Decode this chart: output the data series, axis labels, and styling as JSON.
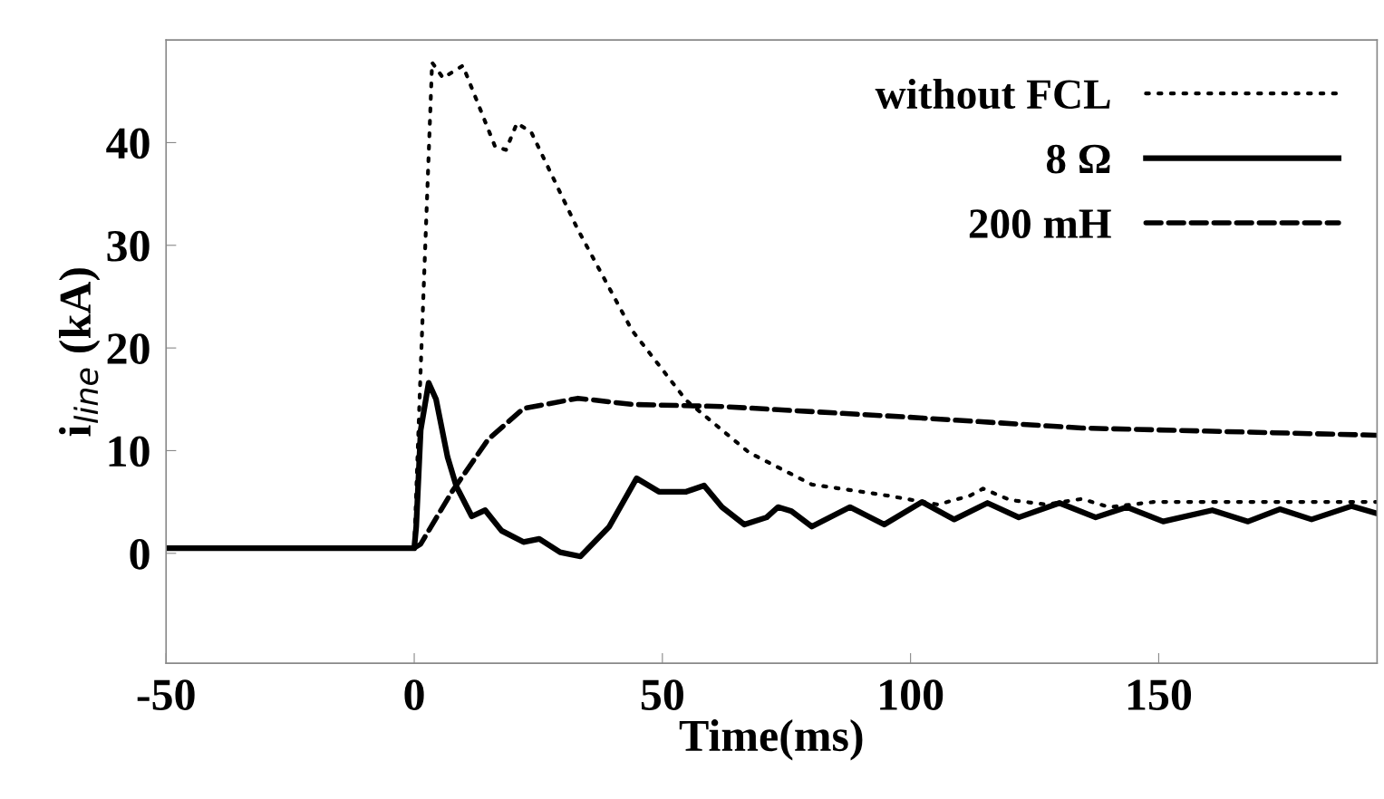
{
  "chart_data": {
    "type": "line",
    "xlabel": "Time(ms)",
    "ylabel": "i$_{line}$ (kA)",
    "xlim": [
      -50,
      194
    ],
    "ylim": [
      -10.7,
      50
    ],
    "xticks": [
      -50,
      0,
      50,
      100,
      150
    ],
    "yticks": [
      0,
      10,
      20,
      30,
      40
    ],
    "legend": "top right",
    "grid": false,
    "series": [
      {
        "name": "without FCL",
        "color": "#000000",
        "line_style": "dotted",
        "x": [
          -50,
          0,
          1.3,
          3.6,
          5.8,
          9.8,
          16.3,
          18.5,
          20.7,
          23.6,
          33,
          43.9,
          54.8,
          67.5,
          80.1,
          90.1,
          95.6,
          105.5,
          111.9,
          114.6,
          120,
          127.3,
          134.5,
          140,
          149,
          193.8
        ],
        "values": [
          0.5,
          0.5,
          18,
          47.8,
          46.3,
          47.5,
          39.6,
          39.3,
          41.9,
          41,
          31.5,
          21.7,
          14.9,
          9.8,
          6.7,
          6.0,
          5.6,
          4.75,
          5.6,
          6.3,
          5.2,
          4.75,
          5.3,
          4.5,
          5.0,
          5.0
        ]
      },
      {
        "name": "8 Ω",
        "color": "#000000",
        "line_style": "solid",
        "x": [
          -50,
          0,
          0.4,
          1.3,
          2.9,
          4.4,
          6.7,
          8.5,
          11.6,
          14.3,
          17.6,
          22,
          25.2,
          29.4,
          33.5,
          39.3,
          44.8,
          49.3,
          54.8,
          58.4,
          62,
          66.5,
          71,
          73.3,
          76,
          80.1,
          87.8,
          94.7,
          102.3,
          108.8,
          115.5,
          121.8,
          130,
          137.3,
          143.6,
          150.9,
          160.8,
          168,
          174.4,
          180.8,
          188.9,
          193.8
        ],
        "values": [
          0.5,
          0.5,
          2.6,
          12,
          16.6,
          15,
          9.4,
          6.5,
          3.6,
          4.2,
          2.2,
          1.1,
          1.4,
          0.1,
          -0.3,
          2.6,
          7.3,
          6,
          6,
          6.6,
          4.5,
          2.8,
          3.5,
          4.5,
          4.1,
          2.6,
          4.5,
          2.8,
          5.0,
          3.3,
          4.9,
          3.5,
          4.9,
          3.5,
          4.5,
          3.1,
          4.2,
          3.1,
          4.3,
          3.3,
          4.6,
          3.9
        ]
      },
      {
        "name": "200 mH",
        "color": "#000000",
        "line_style": "dashed",
        "x": [
          -50,
          0,
          1.3,
          7.6,
          14.9,
          22,
          33,
          43.9,
          62,
          98.3,
          134.5,
          193.8
        ],
        "values": [
          0.5,
          0.5,
          0.9,
          6,
          11.1,
          14.1,
          15.1,
          14.5,
          14.3,
          13.3,
          12.2,
          11.5
        ]
      }
    ]
  }
}
